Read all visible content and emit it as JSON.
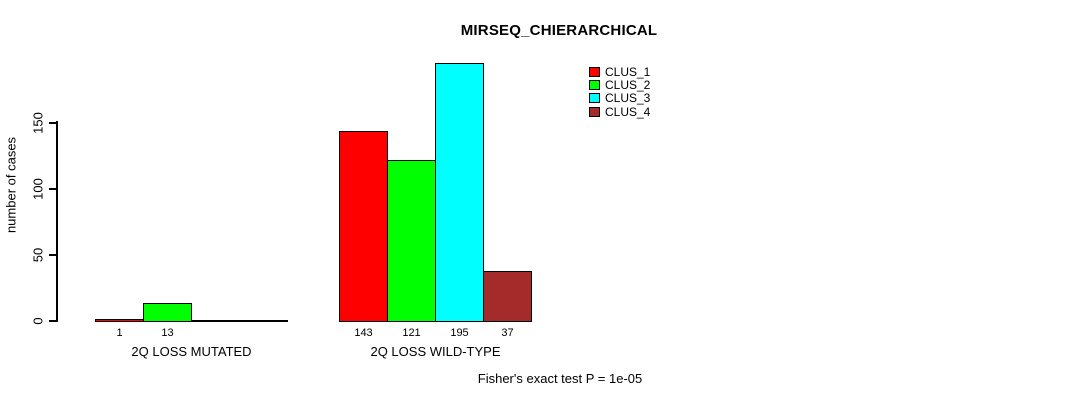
{
  "chart_data": {
    "type": "bar",
    "title": "MIRSEQ_CHIERARCHICAL",
    "ylabel": "number of cases",
    "xlabel": "",
    "yticks": [
      0,
      50,
      100,
      150
    ],
    "ylim": [
      0,
      200
    ],
    "grid": false,
    "legend_position": "top-right",
    "bar_border_color": "#000000",
    "background_color": "#ffffff",
    "legend": [
      {
        "label": "CLUS_1",
        "color": "#ff0000"
      },
      {
        "label": "CLUS_2",
        "color": "#00ff00"
      },
      {
        "label": "CLUS_3",
        "color": "#00ffff"
      },
      {
        "label": "CLUS_4",
        "color": "#a52a2a"
      }
    ],
    "groups": [
      {
        "label": "2Q LOSS MUTATED",
        "bars": [
          {
            "cluster": "CLUS_1",
            "color": "#ff0000",
            "value": 1,
            "count_label": "1"
          },
          {
            "cluster": "CLUS_2",
            "color": "#00ff00",
            "value": 13,
            "count_label": "13"
          },
          {
            "cluster": "CLUS_3",
            "color": "#00ffff",
            "value": 0,
            "count_label": ""
          },
          {
            "cluster": "CLUS_4",
            "color": "#a52a2a",
            "value": 0,
            "count_label": ""
          }
        ]
      },
      {
        "label": "2Q LOSS WILD-TYPE",
        "bars": [
          {
            "cluster": "CLUS_1",
            "color": "#ff0000",
            "value": 143,
            "count_label": "143"
          },
          {
            "cluster": "CLUS_2",
            "color": "#00ff00",
            "value": 121,
            "count_label": "121"
          },
          {
            "cluster": "CLUS_3",
            "color": "#00ffff",
            "value": 195,
            "count_label": "195"
          },
          {
            "cluster": "CLUS_4",
            "color": "#a52a2a",
            "value": 37,
            "count_label": "37"
          }
        ]
      }
    ],
    "footnote": "Fisher's exact test P = 1e-05"
  }
}
